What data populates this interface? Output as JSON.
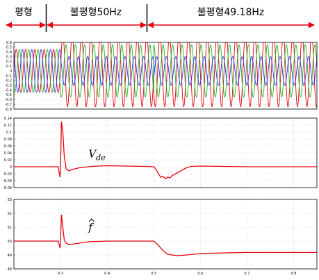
{
  "header": {
    "segments": [
      {
        "label": "평형",
        "x_start": 0.0,
        "x_end": 0.3
      },
      {
        "label": "불평형50Hz",
        "x_start": 0.3,
        "x_end": 0.5
      },
      {
        "label": "불평형49.18Hz",
        "x_start": 0.5,
        "x_end": 0.85
      }
    ]
  },
  "colors": {
    "red": "#e8000d",
    "green": "#22b822",
    "blue": "#2f2fe8",
    "arrow": "#e8000d"
  },
  "chart_data": [
    {
      "type": "line",
      "title": "",
      "xlabel": "",
      "ylabel": "",
      "xlim": [
        0.2,
        0.85
      ],
      "ylim": [
        -0.8,
        0.6
      ],
      "x_ticks": [],
      "y_ticks": [
        "0.6",
        "0.5",
        "0.4",
        "0.3",
        "0.2",
        "0.1",
        "0",
        "-0.1",
        "-0.2",
        "-0.3",
        "-0.4",
        "-0.5",
        "-0.6",
        "-0.7",
        "-0.8"
      ],
      "y_tick_values": [
        0.6,
        0.5,
        0.4,
        0.3,
        0.2,
        0.1,
        0,
        -0.1,
        -0.2,
        -0.3,
        -0.4,
        -0.5,
        -0.6,
        -0.7,
        -0.8
      ],
      "grid": true,
      "series": [
        {
          "color_key": "red",
          "segments": [
            {
              "x_start": 0.2,
              "x_end": 0.3,
              "amplitude": 0.45,
              "frequency_hz": 50,
              "phase_deg": 0
            },
            {
              "x_start": 0.3,
              "x_end": 0.5,
              "amplitude": 0.75,
              "frequency_hz": 50,
              "phase_deg": 0
            },
            {
              "x_start": 0.5,
              "x_end": 0.85,
              "amplitude": 0.75,
              "frequency_hz": 49.18,
              "phase_deg": 0
            }
          ]
        },
        {
          "color_key": "green",
          "segments": [
            {
              "x_start": 0.2,
              "x_end": 0.3,
              "amplitude": 0.45,
              "frequency_hz": 50,
              "phase_deg": -120
            },
            {
              "x_start": 0.3,
              "x_end": 0.5,
              "amplitude": 0.55,
              "frequency_hz": 50,
              "phase_deg": -120
            },
            {
              "x_start": 0.5,
              "x_end": 0.85,
              "amplitude": 0.55,
              "frequency_hz": 49.18,
              "phase_deg": -120
            }
          ]
        },
        {
          "color_key": "blue",
          "segments": [
            {
              "x_start": 0.2,
              "x_end": 0.3,
              "amplitude": 0.45,
              "frequency_hz": 50,
              "phase_deg": 120
            },
            {
              "x_start": 0.3,
              "x_end": 0.5,
              "amplitude": 0.3,
              "frequency_hz": 50,
              "phase_deg": 120
            },
            {
              "x_start": 0.5,
              "x_end": 0.85,
              "amplitude": 0.3,
              "frequency_hz": 49.18,
              "phase_deg": 120
            }
          ]
        }
      ]
    },
    {
      "type": "line",
      "title": "",
      "xlabel": "",
      "ylabel": "",
      "xlim": [
        0.2,
        0.85
      ],
      "ylim": [
        -0.06,
        0.14
      ],
      "x_ticks": [],
      "y_ticks": [
        "0.14",
        "0.12",
        "0.1",
        "0.08",
        "0.06",
        "0.04",
        "0.02",
        "0",
        "-0.02",
        "-0.04",
        "-0.06"
      ],
      "y_tick_values": [
        0.14,
        0.12,
        0.1,
        0.08,
        0.06,
        0.04,
        0.02,
        0,
        -0.02,
        -0.04,
        -0.06
      ],
      "grid": true,
      "annotation": {
        "base": "V",
        "sub": "de",
        "x": 0.36,
        "y": 0.027
      },
      "series": [
        {
          "name": "",
          "color_key": "red",
          "x": [
            0.2,
            0.295,
            0.299,
            0.3,
            0.302,
            0.305,
            0.308,
            0.312,
            0.318,
            0.325,
            0.34,
            0.36,
            0.38,
            0.4,
            0.44,
            0.48,
            0.5,
            0.505,
            0.51,
            0.515,
            0.52,
            0.525,
            0.53,
            0.535,
            0.54,
            0.55,
            0.56,
            0.57,
            0.58,
            0.6,
            0.65,
            0.7,
            0.75,
            0.8,
            0.85
          ],
          "y": [
            0.0,
            0.0,
            -0.03,
            0.0,
            0.13,
            0.1,
            0.03,
            -0.005,
            -0.012,
            -0.008,
            -0.003,
            0.0,
            0.002,
            0.003,
            0.002,
            0.001,
            0.0,
            -0.008,
            -0.02,
            -0.03,
            -0.028,
            -0.035,
            -0.03,
            -0.032,
            -0.025,
            -0.018,
            -0.01,
            -0.003,
            0.001,
            0.002,
            0.001,
            0.0,
            0.0,
            0.0,
            0.0
          ]
        }
      ]
    },
    {
      "type": "line",
      "title": "",
      "xlabel": "",
      "ylabel": "",
      "xlim": [
        0.2,
        0.85
      ],
      "ylim": [
        48,
        53
      ],
      "x_ticks": [
        "0.3",
        "0.4",
        "0.5",
        "0.6",
        "0.7",
        "0.8"
      ],
      "x_tick_values": [
        0.3,
        0.4,
        0.5,
        0.6,
        0.7,
        0.8
      ],
      "y_ticks": [
        "53",
        "52",
        "51",
        "50",
        "49",
        "48"
      ],
      "y_tick_values": [
        53,
        52,
        51,
        50,
        49,
        48
      ],
      "grid": true,
      "annotation": {
        "base": "f",
        "sub": "",
        "x": 0.36,
        "y": 50.75
      },
      "series": [
        {
          "name": "",
          "color_key": "red",
          "x": [
            0.2,
            0.295,
            0.299,
            0.3,
            0.302,
            0.305,
            0.308,
            0.312,
            0.318,
            0.33,
            0.36,
            0.4,
            0.45,
            0.5,
            0.51,
            0.52,
            0.53,
            0.55,
            0.57,
            0.6,
            0.65,
            0.7,
            0.75,
            0.8,
            0.85
          ],
          "y": [
            50.0,
            50.0,
            49.5,
            50.0,
            51.9,
            51.0,
            50.1,
            49.85,
            49.75,
            49.8,
            49.95,
            50.0,
            50.0,
            50.0,
            49.7,
            49.3,
            49.05,
            48.95,
            49.0,
            49.1,
            49.15,
            49.18,
            49.18,
            49.18,
            49.18
          ]
        }
      ]
    }
  ]
}
